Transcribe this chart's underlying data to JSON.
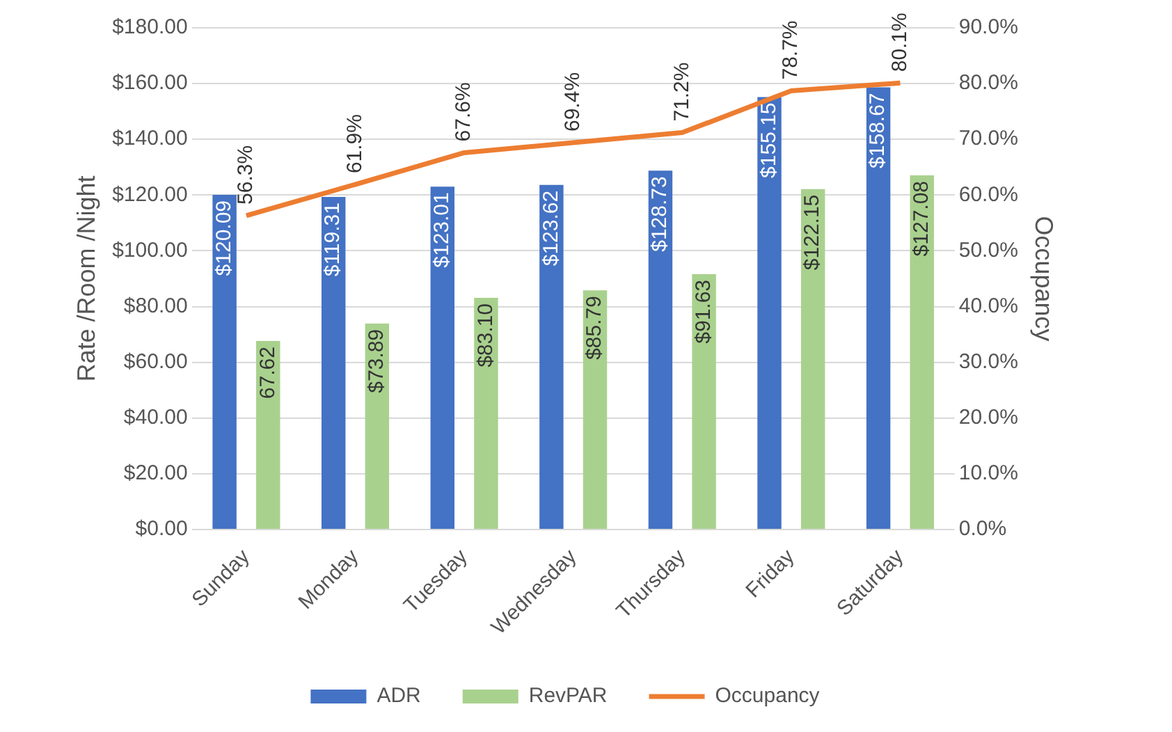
{
  "chart_data": {
    "type": "bar",
    "ylabel": "Rate /Room /Night",
    "y2label": "Occupancy",
    "categories": [
      "Sunday",
      "Monday",
      "Tuesday",
      "Wednesday",
      "Thursday",
      "Friday",
      "Saturday"
    ],
    "series": [
      {
        "name": "ADR",
        "color": "#4472c4",
        "values": [
          120.09,
          119.31,
          123.01,
          123.62,
          128.73,
          155.15,
          158.67
        ],
        "value_labels": [
          "$120.09",
          "$119.31",
          "$123.01",
          "$123.62",
          "$128.73",
          "$155.15",
          "$158.67"
        ]
      },
      {
        "name": "RevPAR",
        "color": "#a9d18e",
        "values": [
          67.62,
          73.89,
          83.1,
          85.79,
          91.63,
          122.15,
          127.08
        ],
        "value_labels": [
          "67.62",
          "$73.89",
          "$83.10",
          "$85.79",
          "$91.63",
          "$122.15",
          "$127.08"
        ]
      },
      {
        "name": "Occupancy",
        "type": "line",
        "axis": "y2",
        "color": "#ed7d31",
        "values": [
          56.3,
          61.9,
          67.6,
          69.4,
          71.2,
          78.7,
          80.1
        ],
        "value_labels": [
          "56.3%",
          "61.9%",
          "67.6%",
          "69.4%",
          "71.2%",
          "78.7%",
          "80.1%"
        ]
      }
    ],
    "ylim": [
      0,
      180
    ],
    "yticks": [
      {
        "value": 0,
        "label": "$0.00"
      },
      {
        "value": 20,
        "label": "$20.00"
      },
      {
        "value": 40,
        "label": "$40.00"
      },
      {
        "value": 60,
        "label": "$60.00"
      },
      {
        "value": 80,
        "label": "$80.00"
      },
      {
        "value": 100,
        "label": "$100.00"
      },
      {
        "value": 120,
        "label": "$120.00"
      },
      {
        "value": 140,
        "label": "$140.00"
      },
      {
        "value": 160,
        "label": "$160.00"
      },
      {
        "value": 180,
        "label": "$180.00"
      }
    ],
    "y2lim": [
      0,
      90
    ],
    "y2ticks": [
      {
        "value": 0,
        "label": "0.0%"
      },
      {
        "value": 10,
        "label": "10.0%"
      },
      {
        "value": 20,
        "label": "20.0%"
      },
      {
        "value": 30,
        "label": "30.0%"
      },
      {
        "value": 40,
        "label": "40.0%"
      },
      {
        "value": 50,
        "label": "50.0%"
      },
      {
        "value": 60,
        "label": "60.0%"
      },
      {
        "value": 70,
        "label": "70.0%"
      },
      {
        "value": 80,
        "label": "80.0%"
      },
      {
        "value": 90,
        "label": "90.0%"
      }
    ],
    "grid": "y",
    "legend": "bottom",
    "marker": "none",
    "line_style": "solid"
  }
}
